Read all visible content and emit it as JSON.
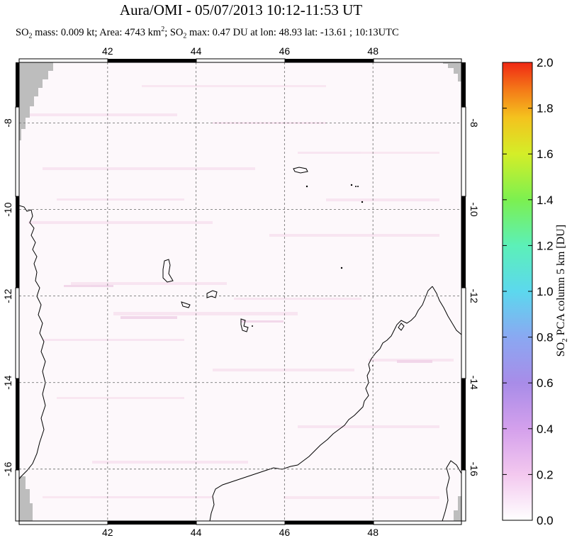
{
  "title": "Aura/OMI - 05/07/2013 10:12-11:53 UT",
  "subtitle": {
    "so2_prefix": "SO",
    "so2_sub": "2",
    "mass_text": " mass: 0.009 kt; Area: 4743 km",
    "area_sup": "2",
    "sep": "; SO",
    "so2max_sub": "2",
    "max_text": " max: 0.47 DU at lon: 48.93 lat: -13.61 ; 10:13UTC"
  },
  "map": {
    "lon_ticks": [
      "42",
      "44",
      "46",
      "48"
    ],
    "lat_ticks": [
      "-8",
      "-10",
      "-12",
      "-14",
      "-16"
    ],
    "lon_values": [
      42,
      44,
      46,
      48
    ],
    "lat_values": [
      -8,
      -10,
      -12,
      -14,
      -16
    ],
    "lon_range": [
      40,
      50
    ],
    "lat_range": [
      -17.2,
      -6.6
    ]
  },
  "colorbar": {
    "label": "SO2 PCA column 5 km [DU]",
    "ticks": [
      "2.0",
      "1.8",
      "1.6",
      "1.4",
      "1.2",
      "1.0",
      "0.8",
      "0.6",
      "0.4",
      "0.2",
      "0.0"
    ],
    "min": 0.0,
    "max": 2.0,
    "colors": [
      "#ffffff",
      "#f3c8ef",
      "#c28ce8",
      "#8a90f0",
      "#5cd2ec",
      "#5cf0c0",
      "#6ef05a",
      "#c8f02c",
      "#f4d21e",
      "#f48a1a",
      "#f02814"
    ]
  }
}
